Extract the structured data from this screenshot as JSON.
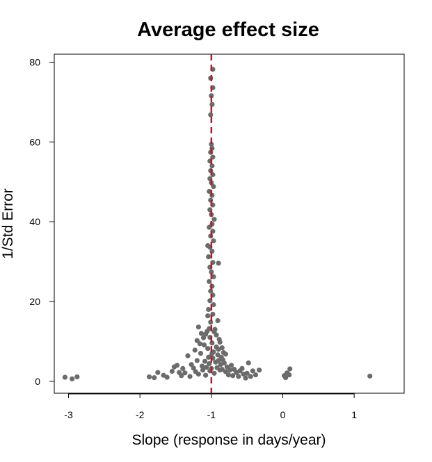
{
  "chart_data": {
    "type": "scatter",
    "title": "Average effect size",
    "xlabel": "Slope (response in days/year)",
    "ylabel": "1/Std Error",
    "xlim": [
      -3.2,
      1.7
    ],
    "ylim": [
      -3,
      82
    ],
    "xticks": [
      "-3",
      "-2",
      "-1",
      "0",
      "1"
    ],
    "yticks": [
      "0",
      "20",
      "40",
      "60",
      "80"
    ],
    "reference_line": {
      "x": -1.0,
      "style": "dashed",
      "color": "#c8102e"
    },
    "marker_color": "#6b6b6b",
    "grid": false,
    "points": [
      [
        -3.05,
        1.0
      ],
      [
        -2.95,
        0.6
      ],
      [
        -2.88,
        1.1
      ],
      [
        -1.87,
        1.1
      ],
      [
        -1.8,
        0.9
      ],
      [
        -1.75,
        2.2
      ],
      [
        -1.67,
        1.5
      ],
      [
        -1.62,
        1.0
      ],
      [
        -1.55,
        2.5
      ],
      [
        -1.52,
        3.6
      ],
      [
        -1.48,
        4.0
      ],
      [
        -1.45,
        2.2
      ],
      [
        -1.42,
        1.4
      ],
      [
        -1.4,
        3.2
      ],
      [
        -1.37,
        2.1
      ],
      [
        -1.33,
        6.4
      ],
      [
        -1.3,
        1.2
      ],
      [
        -1.28,
        4.2
      ],
      [
        -1.25,
        3.3
      ],
      [
        -1.22,
        2.4
      ],
      [
        -1.2,
        5.2
      ],
      [
        -1.18,
        1.8
      ],
      [
        -1.15,
        7.0
      ],
      [
        -1.13,
        3.8
      ],
      [
        -1.12,
        2.8
      ],
      [
        -1.1,
        9.1
      ],
      [
        -1.09,
        5.0
      ],
      [
        -1.08,
        1.5
      ],
      [
        -1.07,
        3.5
      ],
      [
        -1.06,
        12.5
      ],
      [
        -1.05,
        8.2
      ],
      [
        -1.04,
        6.0
      ],
      [
        -1.03,
        4.4
      ],
      [
        -1.02,
        2.6
      ],
      [
        -1.02,
        11.0
      ],
      [
        -1.01,
        14.8
      ],
      [
        -1.0,
        3.2
      ],
      [
        -0.99,
        9.6
      ],
      [
        -0.98,
        5.8
      ],
      [
        -0.97,
        7.4
      ],
      [
        -0.96,
        2.0
      ],
      [
        -0.95,
        13.0
      ],
      [
        -0.94,
        4.8
      ],
      [
        -0.93,
        8.6
      ],
      [
        -0.92,
        3.4
      ],
      [
        -0.91,
        6.6
      ],
      [
        -0.9,
        5.2
      ],
      [
        -0.89,
        10.5
      ],
      [
        -0.88,
        2.8
      ],
      [
        -0.87,
        4.2
      ],
      [
        -0.86,
        6.0
      ],
      [
        -0.85,
        3.0
      ],
      [
        -0.84,
        5.4
      ],
      [
        -0.82,
        4.6
      ],
      [
        -0.8,
        2.4
      ],
      [
        -0.78,
        3.6
      ],
      [
        -0.76,
        1.6
      ],
      [
        -0.74,
        2.8
      ],
      [
        -0.72,
        4.0
      ],
      [
        -0.7,
        1.4
      ],
      [
        -0.68,
        3.0
      ],
      [
        -0.65,
        2.2
      ],
      [
        -0.62,
        1.2
      ],
      [
        -0.6,
        2.6
      ],
      [
        -0.57,
        3.2
      ],
      [
        -0.55,
        1.8
      ],
      [
        -0.52,
        0.8
      ],
      [
        -0.5,
        2.0
      ],
      [
        -0.48,
        4.6
      ],
      [
        -0.45,
        1.2
      ],
      [
        -0.42,
        2.6
      ],
      [
        -0.38,
        1.6
      ],
      [
        -0.33,
        2.8
      ],
      [
        0.02,
        1.4
      ],
      [
        0.04,
        0.9
      ],
      [
        0.06,
        2.1
      ],
      [
        0.09,
        1.6
      ],
      [
        0.1,
        3.1
      ],
      [
        1.22,
        1.3
      ],
      [
        -1.18,
        13.6
      ],
      [
        -1.14,
        12.0
      ],
      [
        -1.11,
        10.9
      ],
      [
        -1.08,
        11.8
      ],
      [
        -1.05,
        16.4
      ],
      [
        -1.03,
        13.2
      ],
      [
        -0.98,
        16.8
      ],
      [
        -0.96,
        12.4
      ],
      [
        -0.93,
        11.6
      ],
      [
        -0.91,
        15.2
      ],
      [
        -0.88,
        9.8
      ],
      [
        -1.16,
        9.4
      ],
      [
        -1.2,
        10.2
      ],
      [
        -0.85,
        8.4
      ],
      [
        -0.8,
        6.8
      ],
      [
        -0.83,
        7.2
      ],
      [
        -0.9,
        8.0
      ],
      [
        -0.99,
        7.0
      ],
      [
        -1.01,
        6.2
      ],
      [
        -1.23,
        7.8
      ],
      [
        -0.9,
        29.6
      ],
      [
        -1.04,
        18.0
      ],
      [
        -0.97,
        19.2
      ],
      [
        -1.02,
        20.2
      ],
      [
        -0.98,
        21.6
      ],
      [
        -1.01,
        22.6
      ],
      [
        -0.99,
        23.8
      ],
      [
        -1.03,
        25.0
      ],
      [
        -0.97,
        26.2
      ],
      [
        -1.0,
        27.4
      ],
      [
        -1.02,
        28.6
      ],
      [
        -0.98,
        29.8
      ],
      [
        -1.04,
        31.2
      ],
      [
        -0.99,
        32.6
      ],
      [
        -1.02,
        33.6
      ],
      [
        -1.05,
        34.0
      ],
      [
        -0.97,
        35.2
      ],
      [
        -1.01,
        36.4
      ],
      [
        -0.98,
        37.6
      ],
      [
        -1.03,
        38.6
      ],
      [
        -0.99,
        39.4
      ],
      [
        -0.96,
        40.6
      ],
      [
        -1.0,
        41.8
      ],
      [
        -1.02,
        43.0
      ],
      [
        -0.98,
        44.2
      ],
      [
        -1.01,
        45.4
      ],
      [
        -0.99,
        46.6
      ],
      [
        -1.03,
        47.6
      ],
      [
        -0.97,
        48.8
      ],
      [
        -1.0,
        49.8
      ],
      [
        -1.02,
        50.8
      ],
      [
        -0.98,
        51.8
      ],
      [
        -1.01,
        52.8
      ],
      [
        -0.99,
        54.0
      ],
      [
        -1.02,
        55.2
      ],
      [
        -0.98,
        56.2
      ],
      [
        -1.01,
        57.4
      ],
      [
        -0.99,
        58.4
      ],
      [
        -1.0,
        59.4
      ],
      [
        -1.01,
        66.8
      ],
      [
        -0.99,
        69.4
      ],
      [
        -1.0,
        71.6
      ],
      [
        -0.98,
        73.6
      ],
      [
        -1.01,
        76.0
      ],
      [
        -0.98,
        78.2
      ]
    ]
  }
}
